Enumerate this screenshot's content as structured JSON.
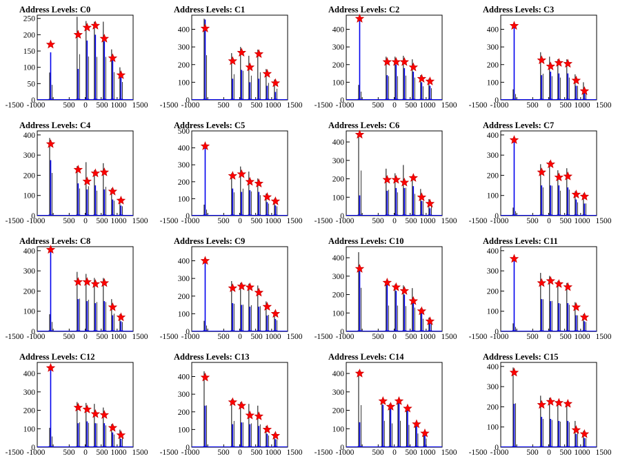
{
  "chart_data": [
    {
      "type": "bar",
      "title": "Address Levels: C0",
      "ylim": [
        0,
        260
      ],
      "yticks": [
        0,
        50,
        100,
        150,
        200,
        250
      ],
      "xlim": [
        -1500,
        1500
      ],
      "xtick_labels": [
        "-1500",
        "-1000",
        "500",
        "0",
        "500",
        "1000",
        "1500"
      ],
      "peaks_x": [
        -1080,
        -220,
        60,
        320,
        600,
        860,
        1120
      ],
      "peak_values": [
        170,
        200,
        222,
        228,
        188,
        128,
        76
      ],
      "blue_heights": [
        146,
        95,
        182,
        200,
        180,
        128,
        76
      ],
      "black_heights": [
        84,
        255,
        242,
        240,
        240,
        155,
        100
      ]
    },
    {
      "type": "bar",
      "title": "Address Levels: C1",
      "ylim": [
        0,
        480
      ],
      "yticks": [
        0,
        100,
        200,
        300,
        400
      ],
      "xlim": [
        -1500,
        1500
      ],
      "xtick_labels": [
        "-1500",
        "-1000",
        "500",
        "0",
        "500",
        "1000",
        "1500"
      ],
      "peaks_x": [
        -1080,
        -220,
        60,
        320,
        600,
        860,
        1120
      ],
      "peak_values": [
        405,
        220,
        268,
        185,
        260,
        148,
        95
      ],
      "blue_heights": [
        455,
        120,
        170,
        100,
        120,
        80,
        45
      ],
      "black_heights": [
        460,
        265,
        300,
        250,
        285,
        175,
        115
      ]
    },
    {
      "type": "bar",
      "title": "Address Levels: C2",
      "ylim": [
        0,
        480
      ],
      "yticks": [
        0,
        100,
        200,
        300,
        400
      ],
      "xlim": [
        -1500,
        1500
      ],
      "xtick_labels": [
        "-1500",
        "-1000",
        "500",
        "0",
        "500",
        "1000",
        "1500"
      ],
      "peaks_x": [
        -1080,
        -220,
        60,
        320,
        600,
        860,
        1120
      ],
      "peak_values": [
        460,
        215,
        215,
        215,
        185,
        120,
        105
      ],
      "blue_heights": [
        460,
        140,
        200,
        180,
        160,
        100,
        80
      ],
      "black_heights": [
        85,
        245,
        245,
        250,
        230,
        140,
        120
      ]
    },
    {
      "type": "bar",
      "title": "Address Levels: C3",
      "ylim": [
        0,
        480
      ],
      "yticks": [
        0,
        100,
        200,
        300,
        400
      ],
      "xlim": [
        -1500,
        1500
      ],
      "xtick_labels": [
        "-1500",
        "-1000",
        "500",
        "0",
        "500",
        "1000",
        "1500"
      ],
      "peaks_x": [
        -1080,
        -220,
        60,
        320,
        600,
        860,
        1120
      ],
      "peak_values": [
        420,
        225,
        190,
        210,
        205,
        110,
        50
      ],
      "blue_heights": [
        415,
        140,
        160,
        150,
        150,
        80,
        40
      ],
      "black_heights": [
        60,
        270,
        245,
        230,
        230,
        145,
        100
      ]
    },
    {
      "type": "bar",
      "title": "Address Levels: C4",
      "ylim": [
        0,
        420
      ],
      "yticks": [
        0,
        100,
        200,
        300,
        400
      ],
      "xlim": [
        -1500,
        1500
      ],
      "xtick_labels": [
        "-1500",
        "-1000",
        "500",
        "0",
        "500",
        "1000",
        "1500"
      ],
      "peaks_x": [
        -1080,
        -220,
        60,
        320,
        600,
        860,
        1120
      ],
      "peak_values": [
        355,
        228,
        170,
        210,
        215,
        120,
        75
      ],
      "blue_heights": [
        275,
        160,
        130,
        150,
        130,
        80,
        50
      ],
      "black_heights": [
        385,
        245,
        265,
        225,
        260,
        135,
        85
      ]
    },
    {
      "type": "bar",
      "title": "Address Levels: C5",
      "ylim": [
        0,
        500
      ],
      "yticks": [
        0,
        100,
        200,
        300,
        400,
        500
      ],
      "xlim": [
        -1500,
        1500
      ],
      "xtick_labels": [
        "-1500",
        "-1000",
        "500",
        "0",
        "500",
        "1000",
        "1500"
      ],
      "peaks_x": [
        -1080,
        -220,
        60,
        320,
        600,
        860,
        1120
      ],
      "peak_values": [
        410,
        235,
        245,
        200,
        190,
        110,
        85
      ],
      "blue_heights": [
        405,
        160,
        140,
        150,
        140,
        80,
        60
      ],
      "black_heights": [
        65,
        250,
        290,
        260,
        220,
        130,
        100
      ]
    },
    {
      "type": "bar",
      "title": "Address Levels: C6",
      "ylim": [
        0,
        460
      ],
      "yticks": [
        0,
        100,
        200,
        300,
        400
      ],
      "xlim": [
        -1500,
        1500
      ],
      "xtick_labels": [
        "-1500",
        "-1000",
        "500",
        "0",
        "500",
        "1000",
        "1500"
      ],
      "peaks_x": [
        -1080,
        -220,
        60,
        320,
        600,
        860,
        1120
      ],
      "peak_values": [
        440,
        195,
        195,
        180,
        205,
        100,
        65
      ],
      "blue_heights": [
        110,
        135,
        150,
        150,
        160,
        80,
        40
      ],
      "black_heights": [
        445,
        255,
        230,
        275,
        215,
        145,
        90
      ]
    },
    {
      "type": "bar",
      "title": "Address Levels: C7",
      "ylim": [
        0,
        420
      ],
      "yticks": [
        0,
        100,
        200,
        300,
        400
      ],
      "xlim": [
        -1500,
        1500
      ],
      "xtick_labels": [
        "-1500",
        "-1000",
        "500",
        "0",
        "500",
        "1000",
        "1500"
      ],
      "peaks_x": [
        -1080,
        -220,
        60,
        320,
        600,
        860,
        1120
      ],
      "peak_values": [
        375,
        215,
        255,
        190,
        195,
        105,
        95
      ],
      "blue_heights": [
        375,
        150,
        150,
        150,
        140,
        80,
        60
      ],
      "black_heights": [
        40,
        255,
        270,
        225,
        235,
        120,
        110
      ]
    },
    {
      "type": "bar",
      "title": "Address Levels: C8",
      "ylim": [
        0,
        420
      ],
      "yticks": [
        0,
        100,
        200,
        300,
        400
      ],
      "xlim": [
        -1500,
        1500
      ],
      "xtick_labels": [
        "-1500",
        "-1000",
        "500",
        "0",
        "500",
        "1000",
        "1500"
      ],
      "peaks_x": [
        -1080,
        -220,
        60,
        320,
        600,
        860,
        1120
      ],
      "peak_values": [
        405,
        245,
        245,
        235,
        240,
        120,
        70
      ],
      "blue_heights": [
        400,
        160,
        150,
        140,
        150,
        80,
        50
      ],
      "black_heights": [
        85,
        295,
        285,
        265,
        265,
        160,
        85
      ]
    },
    {
      "type": "bar",
      "title": "Address Levels: C9",
      "ylim": [
        0,
        480
      ],
      "yticks": [
        0,
        100,
        200,
        300,
        400
      ],
      "xlim": [
        -1500,
        1500
      ],
      "xtick_labels": [
        "-1500",
        "-1000",
        "500",
        "0",
        "500",
        "1000",
        "1500"
      ],
      "peaks_x": [
        -1080,
        -220,
        60,
        320,
        600,
        860,
        1120
      ],
      "peak_values": [
        400,
        245,
        255,
        250,
        220,
        140,
        100
      ],
      "blue_heights": [
        400,
        160,
        150,
        140,
        140,
        90,
        70
      ],
      "black_heights": [
        60,
        285,
        275,
        270,
        260,
        170,
        115
      ]
    },
    {
      "type": "bar",
      "title": "Address Levels: C10",
      "ylim": [
        0,
        460
      ],
      "yticks": [
        0,
        100,
        200,
        300,
        400
      ],
      "xlim": [
        -1500,
        1500
      ],
      "xtick_labels": [
        "-1500",
        "-1000",
        "500",
        "0",
        "500",
        "1000",
        "1500"
      ],
      "peaks_x": [
        -1080,
        -220,
        60,
        320,
        600,
        860,
        1120
      ],
      "peak_values": [
        340,
        265,
        240,
        220,
        165,
        110,
        55
      ],
      "blue_heights": [
        340,
        270,
        220,
        200,
        160,
        100,
        50
      ],
      "black_heights": [
        430,
        255,
        255,
        250,
        235,
        125,
        75
      ]
    },
    {
      "type": "bar",
      "title": "Address Levels: C11",
      "ylim": [
        0,
        420
      ],
      "yticks": [
        0,
        100,
        200,
        300,
        400
      ],
      "xlim": [
        -1500,
        1500
      ],
      "xtick_labels": [
        "-1500",
        "-1000",
        "500",
        "0",
        "500",
        "1000",
        "1500"
      ],
      "peaks_x": [
        -1080,
        -220,
        60,
        320,
        600,
        860,
        1120
      ],
      "peak_values": [
        360,
        240,
        250,
        235,
        220,
        120,
        70
      ],
      "blue_heights": [
        360,
        160,
        150,
        140,
        140,
        80,
        50
      ],
      "black_heights": [
        40,
        290,
        275,
        250,
        240,
        145,
        85
      ]
    },
    {
      "type": "bar",
      "title": "Address Levels: C12",
      "ylim": [
        0,
        460
      ],
      "yticks": [
        0,
        100,
        200,
        300,
        400
      ],
      "xlim": [
        -1500,
        1500
      ],
      "xtick_labels": [
        "-1500",
        "-1000",
        "500",
        "0",
        "500",
        "1000",
        "1500"
      ],
      "peaks_x": [
        -1080,
        -220,
        60,
        320,
        600,
        860,
        1120
      ],
      "peak_values": [
        430,
        215,
        205,
        180,
        175,
        105,
        65
      ],
      "blue_heights": [
        430,
        130,
        140,
        130,
        130,
        80,
        45
      ],
      "black_heights": [
        105,
        245,
        240,
        235,
        215,
        125,
        95
      ]
    },
    {
      "type": "bar",
      "title": "Address Levels: C13",
      "ylim": [
        0,
        480
      ],
      "yticks": [
        0,
        100,
        200,
        300,
        400
      ],
      "xlim": [
        -1500,
        1500
      ],
      "xtick_labels": [
        "-1500",
        "-1000",
        "500",
        "0",
        "500",
        "1000",
        "1500"
      ],
      "peaks_x": [
        -1080,
        -220,
        60,
        320,
        600,
        860,
        1120
      ],
      "peak_values": [
        395,
        255,
        235,
        180,
        175,
        100,
        65
      ],
      "blue_heights": [
        235,
        130,
        140,
        130,
        120,
        75,
        45
      ],
      "black_heights": [
        430,
        270,
        255,
        245,
        235,
        120,
        80
      ]
    },
    {
      "type": "bar",
      "title": "Address Levels: C14",
      "ylim": [
        0,
        460
      ],
      "yticks": [
        0,
        100,
        200,
        300,
        400
      ],
      "xlim": [
        -1500,
        1500
      ],
      "xtick_labels": [
        "-1500",
        "-1000",
        "500",
        "0",
        "500",
        "1000",
        "1500"
      ],
      "peaks_x": [
        -1080,
        -350,
        -110,
        150,
        420,
        700,
        960
      ],
      "peak_values": [
        400,
        250,
        220,
        250,
        210,
        125,
        75
      ],
      "blue_heights": [
        135,
        230,
        210,
        240,
        205,
        120,
        70
      ],
      "black_heights": [
        415,
        260,
        235,
        260,
        220,
        135,
        85
      ]
    },
    {
      "type": "bar",
      "title": "Address Levels: C15",
      "ylim": [
        0,
        420
      ],
      "yticks": [
        0,
        100,
        200,
        300,
        400
      ],
      "xlim": [
        -1500,
        1500
      ],
      "xtick_labels": [
        "-1500",
        "-1000",
        "500",
        "0",
        "500",
        "1000",
        "1500"
      ],
      "peaks_x": [
        -1080,
        -220,
        60,
        320,
        600,
        860,
        1120
      ],
      "peak_values": [
        370,
        210,
        225,
        220,
        215,
        85,
        65
      ],
      "blue_heights": [
        215,
        150,
        140,
        130,
        130,
        65,
        45
      ],
      "black_heights": [
        395,
        255,
        245,
        230,
        225,
        130,
        80
      ]
    }
  ],
  "colors": {
    "blue": "#0000ee",
    "black": "#000000",
    "star_fill": "#ff0000",
    "star_stroke": "#cc0000"
  }
}
